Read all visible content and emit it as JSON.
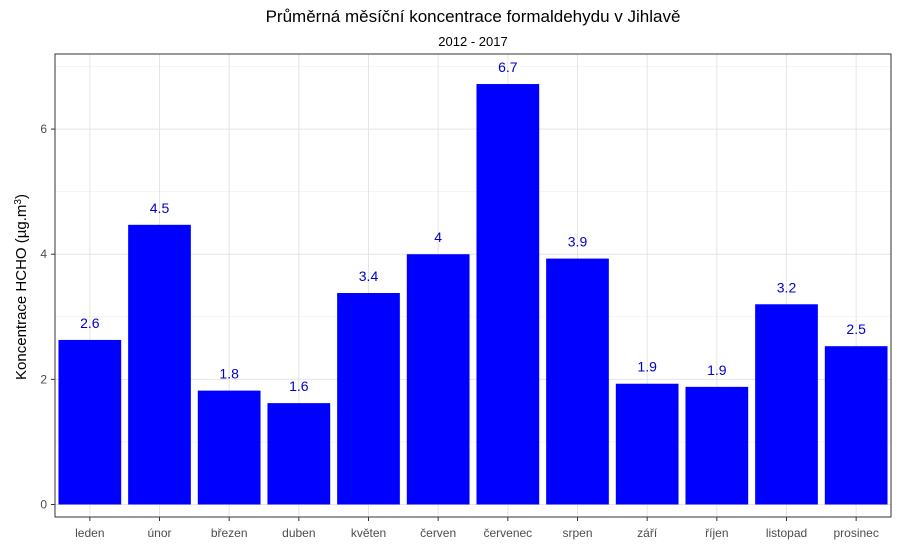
{
  "chart_data": {
    "type": "bar",
    "title": "Průměrná měsíční koncentrace formaldehydu v Jihlavě",
    "subtitle": "2012 - 2017",
    "ylabel_main": "Koncentrace HCHO  (µg.m",
    "ylabel_sup": "3",
    "ylabel_end": ")",
    "xlabel": "",
    "categories": [
      "leden",
      "únor",
      "březen",
      "duben",
      "květen",
      "červen",
      "červenec",
      "srpen",
      "září",
      "říjen",
      "listopad",
      "prosinec"
    ],
    "values": [
      2.63,
      4.47,
      1.82,
      1.62,
      3.38,
      4.0,
      6.72,
      3.93,
      1.93,
      1.88,
      3.2,
      2.53
    ],
    "data_labels": [
      "2.6",
      "4.5",
      "1.8",
      "1.6",
      "3.4",
      "4",
      "6.7",
      "3.9",
      "1.9",
      "1.9",
      "3.2",
      "2.5"
    ],
    "y_ticks": [
      0,
      2,
      4,
      6
    ],
    "ylim": [
      -0.2,
      7.2
    ],
    "bar_color": "#0000ff",
    "label_color": "#0000cc",
    "grid": true,
    "legend": "none"
  }
}
